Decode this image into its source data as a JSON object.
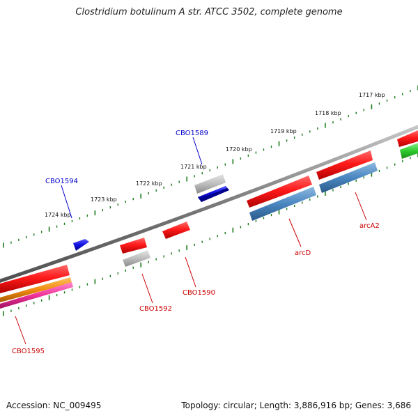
{
  "title": "Clostridium botulinum A str. ATCC 3502, complete genome",
  "footer": {
    "accession": "Accession: NC_009495",
    "summary": "Topology: circular; Length: 3,886,916 bp; Genes: 3,686"
  },
  "scale_labels": [
    "1724 kbp",
    "1723 kbp",
    "1722 kbp",
    "1721 kbp",
    "1720 kbp",
    "1719 kbp",
    "1718 kbp",
    "1717 kbp"
  ],
  "colors": {
    "backbone": "#808080",
    "ticks": "#1a7a1a",
    "cds_forward": "#ee1111",
    "cds_reverse_grey": "#b8b8b8",
    "cds_blue": "#1515dd",
    "cds_steelblue": "#4a86c0",
    "cds_green": "#33cc33",
    "cds_orange": "#f08a10",
    "cds_pink": "#ee3399",
    "label_blue": "#0000cc",
    "label_red": "#cc0000"
  },
  "gene_labels": [
    {
      "name": "CBO1589",
      "color": "label_blue"
    },
    {
      "name": "CBO1594",
      "color": "label_blue"
    },
    {
      "name": "arcD",
      "color": "label_red"
    },
    {
      "name": "arcA2",
      "color": "label_red"
    },
    {
      "name": "CBO1590",
      "color": "label_red"
    },
    {
      "name": "CBO1592",
      "color": "label_red"
    },
    {
      "name": "CBO1595",
      "color": "label_red"
    }
  ]
}
